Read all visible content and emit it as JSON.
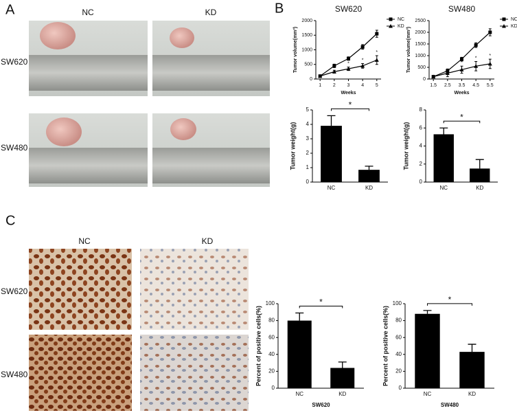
{
  "figure": {
    "panel_labels": [
      "A",
      "B",
      "C"
    ],
    "panel_a": {
      "columns": [
        "NC",
        "KD"
      ],
      "rows": [
        "SW620",
        "SW480"
      ]
    },
    "panel_c": {
      "columns": [
        "NC",
        "KD"
      ],
      "rows": [
        "SW620",
        "SW480"
      ]
    }
  },
  "chart_data": [
    {
      "type": "line",
      "title": "SW620",
      "x_label": "Weeks",
      "y_label": "Tumor volume(mm³)",
      "x": [
        1,
        2,
        3,
        4,
        5
      ],
      "xlim": [
        0.7,
        5.3
      ],
      "xticks": [
        1,
        2,
        3,
        4,
        5
      ],
      "ylim": [
        0,
        2000
      ],
      "yticks": [
        0,
        500,
        1000,
        1500,
        2000
      ],
      "series": [
        {
          "name": "NC",
          "color": "#000000",
          "marker": "square",
          "values": [
            100,
            450,
            700,
            1100,
            1550
          ],
          "errors": [
            30,
            60,
            60,
            80,
            120
          ]
        },
        {
          "name": "KD",
          "color": "#000000",
          "marker": "triangle",
          "values": [
            100,
            250,
            350,
            450,
            650
          ],
          "errors": [
            20,
            50,
            60,
            80,
            150
          ]
        }
      ],
      "annotations": [
        {
          "text": "*",
          "x": 3
        },
        {
          "text": "*",
          "x": 4
        },
        {
          "text": "*",
          "x": 5
        }
      ]
    },
    {
      "type": "line",
      "title": "SW480",
      "x_label": "Weeks",
      "y_label": "Tumor volume(mm³)",
      "x": [
        1.5,
        2.5,
        3.5,
        4.5,
        5.5
      ],
      "xlim": [
        1.2,
        5.8
      ],
      "xticks": [
        1.5,
        2.5,
        3.5,
        4.5,
        5.5
      ],
      "ylim": [
        0,
        2500
      ],
      "yticks": [
        0,
        500,
        1000,
        1500,
        2000,
        2500
      ],
      "series": [
        {
          "name": "NC",
          "color": "#000000",
          "marker": "square",
          "values": [
            100,
            350,
            850,
            1450,
            2000
          ],
          "errors": [
            30,
            80,
            80,
            100,
            150
          ]
        },
        {
          "name": "KD",
          "color": "#000000",
          "marker": "triangle",
          "values": [
            100,
            250,
            400,
            550,
            650
          ],
          "errors": [
            20,
            150,
            150,
            200,
            200
          ]
        }
      ],
      "annotations": [
        {
          "text": "*",
          "x": 3.5
        },
        {
          "text": "*",
          "x": 4.5
        },
        {
          "text": "*",
          "x": 5.5
        }
      ]
    },
    {
      "type": "bar",
      "y_label": "Tumor weight(g)",
      "categories": [
        "NC",
        "KD"
      ],
      "values": [
        3.9,
        0.85
      ],
      "errors": [
        0.7,
        0.25
      ],
      "color": "#000000",
      "ylim": [
        0,
        5
      ],
      "yticks": [
        0,
        1,
        2,
        3,
        4,
        5
      ],
      "significance": "*"
    },
    {
      "type": "bar",
      "y_label": "Tumor weight(g)",
      "categories": [
        "NC",
        "KD"
      ],
      "values": [
        5.3,
        1.5
      ],
      "errors": [
        0.7,
        1.0
      ],
      "color": "#000000",
      "ylim": [
        0,
        8
      ],
      "yticks": [
        0,
        2,
        4,
        6,
        8
      ],
      "significance": "*"
    },
    {
      "type": "bar",
      "y_label": "Percent of positive cells(%)",
      "x_label": "SW620",
      "categories": [
        "NC",
        "KD"
      ],
      "values": [
        80,
        24
      ],
      "errors": [
        9,
        7
      ],
      "color": "#000000",
      "ylim": [
        0,
        100
      ],
      "yticks": [
        0,
        20,
        40,
        60,
        80,
        100
      ],
      "significance": "*"
    },
    {
      "type": "bar",
      "y_label": "Percent of positive cells(%)",
      "x_label": "SW480",
      "categories": [
        "NC",
        "KD"
      ],
      "values": [
        88,
        43
      ],
      "errors": [
        4,
        9
      ],
      "color": "#000000",
      "ylim": [
        0,
        100
      ],
      "yticks": [
        0,
        20,
        40,
        60,
        80,
        100
      ],
      "significance": "*"
    }
  ]
}
